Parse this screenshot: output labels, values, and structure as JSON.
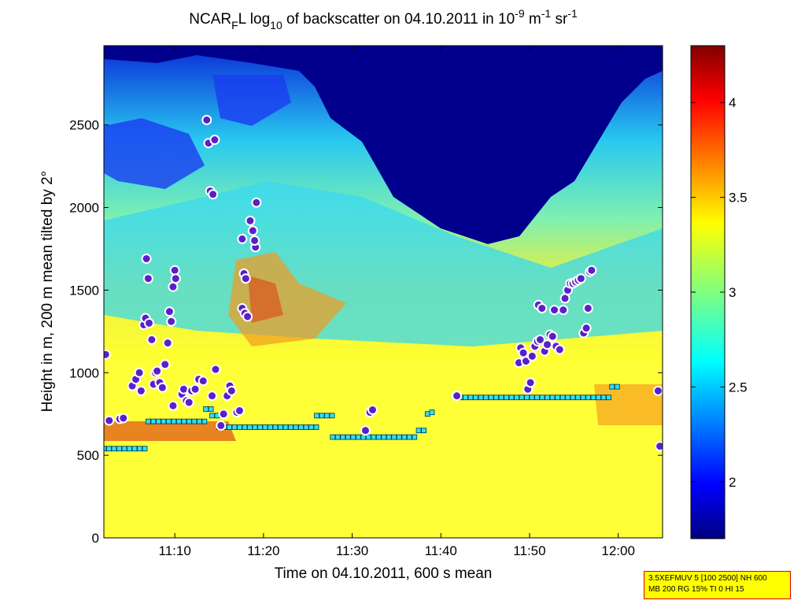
{
  "chart_data": {
    "type": "heatmap",
    "title": {
      "prefix": "NCAR",
      "sub1": "F",
      "mid": "L log",
      "sub2": "10",
      "rest": " of backscatter on 04.10.2011 in 10",
      "sup1": "-9",
      "unit1": " m",
      "sup2": "-1",
      "unit2": " sr",
      "sup3": "-1"
    },
    "xlabel": "Time on 04.10.2011, 600 s mean",
    "ylabel": "Height in m, 200 m mean tilted by 2°",
    "x_start_min": 662,
    "x_end_min": 725,
    "xticks": [
      {
        "v": 670,
        "label": "11:10"
      },
      {
        "v": 680,
        "label": "11:20"
      },
      {
        "v": 690,
        "label": "11:30"
      },
      {
        "v": 700,
        "label": "11:40"
      },
      {
        "v": 710,
        "label": "11:50"
      },
      {
        "v": 720,
        "label": "12:00"
      }
    ],
    "ylim": [
      0,
      2980
    ],
    "yticks": [
      0,
      500,
      1000,
      1500,
      2000,
      2500
    ],
    "colorbar": {
      "range": [
        1.7,
        4.3
      ],
      "ticks": [
        {
          "v": 2,
          "label": "2"
        },
        {
          "v": 2.5,
          "label": "2.5"
        },
        {
          "v": 3,
          "label": "3"
        },
        {
          "v": 3.5,
          "label": "3.5"
        },
        {
          "v": 4,
          "label": "4"
        }
      ]
    },
    "mixing_layer_height": [
      {
        "t1": 662.0,
        "t2": 667.0,
        "h": 540
      },
      {
        "t1": 667.0,
        "t2": 673.5,
        "h": 705
      },
      {
        "t1": 673.5,
        "t2": 674.2,
        "h": 780
      },
      {
        "t1": 674.2,
        "t2": 674.8,
        "h": 740
      },
      {
        "t1": 675.0,
        "t2": 686.0,
        "h": 670
      },
      {
        "t1": 686.0,
        "t2": 687.8,
        "h": 740
      },
      {
        "t1": 687.8,
        "t2": 697.5,
        "h": 610
      },
      {
        "t1": 697.5,
        "t2": 698.5,
        "h": 650
      },
      {
        "t1": 698.5,
        "t2": 699.0,
        "h": 750
      },
      {
        "t1": 699.0,
        "t2": 699.5,
        "h": 760
      },
      {
        "t1": 702.2,
        "t2": 719.2,
        "h": 850
      },
      {
        "t1": 719.3,
        "t2": 720.3,
        "h": 915
      },
      {
        "t1": 724.5,
        "t2": 725.0,
        "h": 555
      }
    ],
    "cloud_base_points": [
      [
        662.2,
        1110
      ],
      [
        662.6,
        710
      ],
      [
        663.8,
        720
      ],
      [
        664.2,
        725
      ],
      [
        665.2,
        920
      ],
      [
        665.6,
        960
      ],
      [
        666.0,
        1000
      ],
      [
        666.2,
        890
      ],
      [
        666.5,
        1290
      ],
      [
        666.7,
        1330
      ],
      [
        666.8,
        1690
      ],
      [
        667.0,
        1570
      ],
      [
        667.1,
        1300
      ],
      [
        667.4,
        1200
      ],
      [
        667.6,
        930
      ],
      [
        667.8,
        1000
      ],
      [
        668.0,
        1010
      ],
      [
        668.3,
        940
      ],
      [
        668.6,
        910
      ],
      [
        668.9,
        1050
      ],
      [
        669.2,
        1180
      ],
      [
        669.4,
        1370
      ],
      [
        669.6,
        1310
      ],
      [
        669.8,
        1520
      ],
      [
        670.0,
        1620
      ],
      [
        670.1,
        1570
      ],
      [
        669.8,
        800
      ],
      [
        670.8,
        870
      ],
      [
        671.0,
        900
      ],
      [
        671.3,
        830
      ],
      [
        671.6,
        820
      ],
      [
        671.9,
        890
      ],
      [
        672.3,
        900
      ],
      [
        672.7,
        960
      ],
      [
        673.2,
        950
      ],
      [
        673.6,
        2530
      ],
      [
        673.8,
        2390
      ],
      [
        674.0,
        2100
      ],
      [
        674.3,
        2080
      ],
      [
        674.5,
        2410
      ],
      [
        674.2,
        860
      ],
      [
        674.6,
        1020
      ],
      [
        675.2,
        680
      ],
      [
        675.5,
        750
      ],
      [
        675.9,
        860
      ],
      [
        676.2,
        920
      ],
      [
        676.4,
        890
      ],
      [
        677.0,
        760
      ],
      [
        677.3,
        770
      ],
      [
        677.6,
        1390
      ],
      [
        677.9,
        1360
      ],
      [
        678.2,
        1340
      ],
      [
        677.8,
        1600
      ],
      [
        678.0,
        1570
      ],
      [
        677.6,
        1810
      ],
      [
        678.5,
        1920
      ],
      [
        678.8,
        1860
      ],
      [
        679.1,
        1760
      ],
      [
        679.2,
        2030
      ],
      [
        679.0,
        1800
      ],
      [
        691.5,
        650
      ],
      [
        692.0,
        760
      ],
      [
        692.3,
        775
      ],
      [
        701.8,
        860
      ],
      [
        708.8,
        1060
      ],
      [
        709.0,
        1150
      ],
      [
        709.3,
        1120
      ],
      [
        709.6,
        1070
      ],
      [
        709.8,
        900
      ],
      [
        710.1,
        940
      ],
      [
        710.3,
        1100
      ],
      [
        710.6,
        1160
      ],
      [
        710.9,
        1190
      ],
      [
        711.2,
        1200
      ],
      [
        711.0,
        1410
      ],
      [
        711.4,
        1390
      ],
      [
        711.7,
        1130
      ],
      [
        712.0,
        1170
      ],
      [
        712.3,
        1230
      ],
      [
        712.6,
        1220
      ],
      [
        712.8,
        1380
      ],
      [
        713.0,
        1160
      ],
      [
        713.4,
        1140
      ],
      [
        713.8,
        1380
      ],
      [
        714.0,
        1450
      ],
      [
        714.3,
        1500
      ],
      [
        714.6,
        1540
      ],
      [
        714.9,
        1540
      ],
      [
        715.2,
        1550
      ],
      [
        715.5,
        1560
      ],
      [
        715.8,
        1570
      ],
      [
        716.1,
        1240
      ],
      [
        716.4,
        1270
      ],
      [
        716.6,
        1390
      ],
      [
        716.8,
        1610
      ],
      [
        717.0,
        1620
      ],
      [
        724.5,
        890
      ],
      [
        724.7,
        555
      ]
    ]
  },
  "info_box": {
    "line1": "3.5XEFMUV 5 [100 2500] NH 600",
    "line2": "MB 200 RG 15% TI 0 HI 15"
  }
}
